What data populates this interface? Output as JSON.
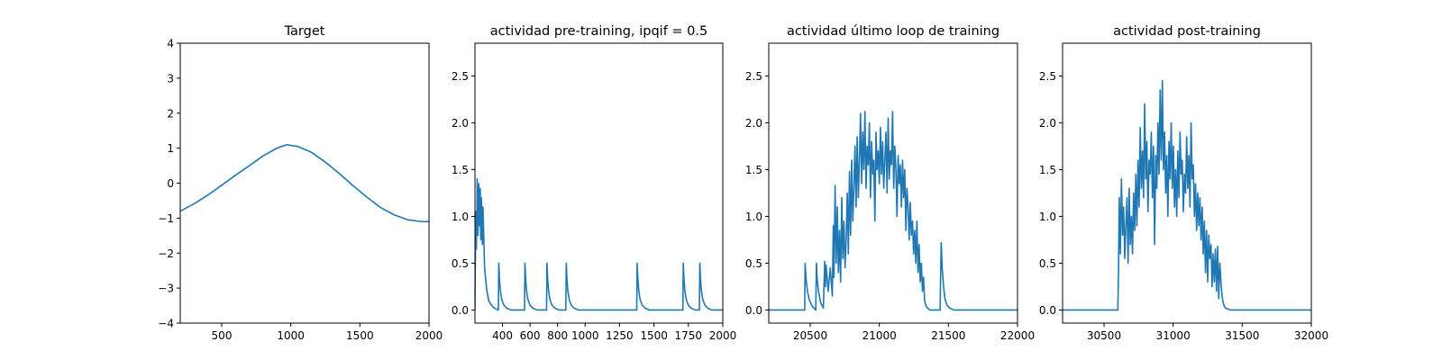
{
  "chart_data": [
    {
      "type": "line",
      "title": "Target",
      "xlabel": "",
      "ylabel": "",
      "xlim": [
        200,
        2000
      ],
      "ylim": [
        -4,
        4
      ],
      "xticks": [
        500,
        1000,
        1500,
        2000
      ],
      "yticks": [
        -4,
        -3,
        -2,
        -1,
        0,
        1,
        2,
        3,
        4
      ],
      "series": [
        {
          "color": "#1f77b4",
          "x": [
            200,
            300,
            400,
            500,
            600,
            700,
            800,
            900,
            970,
            1050,
            1150,
            1250,
            1350,
            1450,
            1550,
            1650,
            1750,
            1850,
            1950,
            2000
          ],
          "y": [
            -0.8,
            -0.59,
            -0.34,
            -0.06,
            0.23,
            0.5,
            0.78,
            1.0,
            1.1,
            1.05,
            0.88,
            0.6,
            0.28,
            -0.07,
            -0.4,
            -0.7,
            -0.91,
            -1.05,
            -1.1,
            -1.1
          ]
        }
      ]
    },
    {
      "type": "line",
      "title": "actividad pre-training, ipqif = 0.5",
      "xlabel": "",
      "ylabel": "",
      "xlim": [
        200,
        2000
      ],
      "ylim": [
        -0.14,
        2.85
      ],
      "xticks": [
        400,
        600,
        800,
        1000,
        1250,
        1500,
        1750,
        2000
      ],
      "yticks": [
        0.0,
        0.5,
        1.0,
        1.5,
        2.0,
        2.5
      ],
      "series": [
        {
          "color": "#1f77b4",
          "x": [
            200,
            202,
            206,
            210,
            214,
            216,
            222,
            226,
            228,
            234,
            238,
            242,
            246,
            250,
            254,
            258,
            262,
            270,
            285,
            300,
            320,
            340,
            370,
            373,
            378,
            385,
            395,
            410,
            430,
            460,
            500,
            560,
            563,
            568,
            575,
            585,
            600,
            620,
            650,
            690,
            720,
            723,
            728,
            735,
            745,
            760,
            780,
            810,
            840,
            860,
            863,
            868,
            875,
            885,
            900,
            920,
            950,
            1000,
            1100,
            1200,
            1300,
            1375,
            1378,
            1383,
            1390,
            1400,
            1415,
            1435,
            1465,
            1500,
            1600,
            1700,
            1710,
            1713,
            1718,
            1725,
            1735,
            1750,
            1770,
            1800,
            1830,
            1833,
            1838,
            1845,
            1855,
            1870,
            1890,
            1920,
            1960,
            2000
          ],
          "y": [
            0.0,
            0.4,
            1.05,
            0.65,
            0.95,
            1.4,
            0.8,
            1.15,
            1.35,
            0.9,
            1.3,
            0.75,
            1.2,
            1.05,
            0.7,
            1.1,
            0.9,
            0.45,
            0.22,
            0.1,
            0.05,
            0.02,
            0.0,
            0.5,
            0.33,
            0.2,
            0.11,
            0.05,
            0.02,
            0.0,
            0.0,
            0.0,
            0.5,
            0.33,
            0.2,
            0.11,
            0.05,
            0.02,
            0.0,
            0.0,
            0.0,
            0.5,
            0.33,
            0.2,
            0.11,
            0.05,
            0.02,
            0.0,
            0.0,
            0.0,
            0.5,
            0.33,
            0.2,
            0.11,
            0.05,
            0.02,
            0.0,
            0.0,
            0.0,
            0.0,
            0.0,
            0.0,
            0.5,
            0.33,
            0.2,
            0.11,
            0.05,
            0.02,
            0.0,
            0.0,
            0.0,
            0.0,
            0.0,
            0.5,
            0.33,
            0.2,
            0.11,
            0.05,
            0.02,
            0.0,
            0.0,
            0.5,
            0.33,
            0.2,
            0.11,
            0.05,
            0.02,
            0.0,
            0.0,
            0.0
          ]
        }
      ]
    },
    {
      "type": "line",
      "title": "actividad último loop de training",
      "xlabel": "",
      "ylabel": "",
      "xlim": [
        20200,
        22000
      ],
      "ylim": [
        -0.14,
        2.85
      ],
      "xticks": [
        20500,
        21000,
        21500,
        22000
      ],
      "yticks": [
        0.0,
        0.5,
        1.0,
        1.5,
        2.0,
        2.5
      ],
      "series": [
        {
          "color": "#1f77b4",
          "x": [
            20200,
            20300,
            20450,
            20460,
            20463,
            20470,
            20480,
            20495,
            20515,
            20540,
            20545,
            20550,
            20560,
            20575,
            20595,
            20605,
            20610,
            20615,
            20630,
            20645,
            20660,
            20667,
            20672,
            20680,
            20688,
            20696,
            20704,
            20712,
            20720,
            20728,
            20736,
            20744,
            20752,
            20760,
            20768,
            20776,
            20784,
            20792,
            20800,
            20808,
            20816,
            20824,
            20832,
            20840,
            20848,
            20856,
            20864,
            20872,
            20880,
            20888,
            20896,
            20904,
            20912,
            20920,
            20928,
            20936,
            20944,
            20952,
            20960,
            20968,
            20976,
            20984,
            20992,
            21000,
            21008,
            21016,
            21024,
            21032,
            21040,
            21048,
            21056,
            21064,
            21072,
            21080,
            21088,
            21096,
            21104,
            21112,
            21120,
            21128,
            21136,
            21144,
            21152,
            21160,
            21168,
            21176,
            21184,
            21192,
            21200,
            21208,
            21216,
            21224,
            21232,
            21240,
            21248,
            21256,
            21264,
            21272,
            21280,
            21288,
            21296,
            21304,
            21312,
            21320,
            21328,
            21336,
            21350,
            21365,
            21380,
            21395,
            21410,
            21425,
            21440,
            21443,
            21448,
            21455,
            21465,
            21475,
            21490,
            21510,
            21540,
            21600,
            21700,
            21800,
            21900,
            22000
          ],
          "y": [
            0.0,
            0.0,
            0.0,
            0.0,
            0.5,
            0.33,
            0.2,
            0.1,
            0.04,
            0.0,
            0.5,
            0.33,
            0.2,
            0.08,
            0.02,
            0.52,
            0.25,
            0.48,
            0.2,
            0.45,
            0.15,
            0.9,
            0.35,
            1.33,
            0.5,
            1.1,
            0.4,
            0.85,
            0.3,
            1.2,
            0.55,
            0.95,
            0.45,
            0.75,
            1.25,
            0.6,
            1.48,
            0.8,
            1.6,
            0.95,
            1.3,
            1.75,
            1.1,
            1.85,
            1.2,
            1.6,
            2.1,
            1.35,
            1.9,
            1.5,
            2.12,
            1.3,
            1.75,
            1.55,
            2.0,
            1.2,
            1.8,
            1.45,
            1.6,
            0.95,
            1.9,
            1.5,
            1.7,
            1.35,
            1.95,
            1.45,
            1.8,
            1.3,
            1.6,
            1.9,
            1.25,
            2.05,
            1.4,
            1.7,
            1.55,
            2.12,
            1.3,
            1.75,
            1.5,
            1.0,
            1.65,
            1.35,
            1.55,
            1.1,
            1.6,
            1.2,
            1.5,
            0.85,
            1.3,
            1.1,
            0.75,
            1.15,
            0.8,
            0.95,
            0.6,
            0.85,
            0.5,
            0.95,
            0.4,
            0.7,
            0.3,
            0.5,
            0.2,
            0.35,
            0.1,
            0.05,
            0.02,
            0.0,
            0.0,
            0.0,
            0.0,
            0.0,
            0.0,
            0.3,
            0.72,
            0.45,
            0.25,
            0.12,
            0.05,
            0.02,
            0.0,
            0.0,
            0.0,
            0.0,
            0.0,
            0.0
          ]
        }
      ]
    },
    {
      "type": "line",
      "title": "actividad post-training",
      "xlabel": "",
      "ylabel": "",
      "xlim": [
        30200,
        32000
      ],
      "ylim": [
        -0.14,
        2.85
      ],
      "xticks": [
        30500,
        31000,
        31500,
        32000
      ],
      "yticks": [
        0.0,
        0.5,
        1.0,
        1.5,
        2.0,
        2.5
      ],
      "series": [
        {
          "color": "#1f77b4",
          "x": [
            30200,
            30400,
            30600,
            30605,
            30610,
            30618,
            30626,
            30634,
            30642,
            30650,
            30658,
            30666,
            30674,
            30682,
            30690,
            30698,
            30706,
            30714,
            30722,
            30730,
            30738,
            30746,
            30754,
            30762,
            30770,
            30778,
            30786,
            30794,
            30802,
            30810,
            30818,
            30826,
            30834,
            30842,
            30850,
            30858,
            30866,
            30874,
            30882,
            30890,
            30898,
            30906,
            30914,
            30922,
            30930,
            30938,
            30946,
            30954,
            30962,
            30970,
            30978,
            30986,
            30994,
            31002,
            31010,
            31018,
            31026,
            31034,
            31042,
            31050,
            31058,
            31066,
            31074,
            31082,
            31090,
            31098,
            31106,
            31114,
            31122,
            31130,
            31138,
            31146,
            31154,
            31162,
            31170,
            31178,
            31186,
            31194,
            31202,
            31210,
            31218,
            31226,
            31234,
            31242,
            31250,
            31258,
            31266,
            31274,
            31282,
            31290,
            31298,
            31306,
            31314,
            31322,
            31330,
            31338,
            31346,
            31354,
            31362,
            31370,
            31380,
            31395,
            31415,
            31440,
            31480,
            31550,
            31700,
            31850,
            32000
          ],
          "y": [
            0.0,
            0.0,
            0.0,
            0.45,
            1.2,
            0.6,
            1.4,
            0.8,
            1.1,
            0.55,
            0.9,
            1.2,
            0.5,
            1.3,
            0.7,
            1.0,
            0.6,
            1.25,
            0.85,
            1.45,
            0.9,
            1.6,
            1.1,
            1.95,
            1.3,
            1.7,
            1.2,
            2.2,
            1.4,
            1.8,
            1.05,
            1.6,
            1.45,
            1.9,
            1.2,
            1.75,
            0.7,
            1.65,
            1.3,
            2.0,
            1.45,
            2.35,
            1.6,
            2.45,
            1.5,
            1.9,
            1.25,
            1.65,
            1.0,
            1.8,
            1.4,
            2.0,
            1.3,
            1.75,
            1.1,
            1.5,
            1.0,
            1.7,
            1.2,
            1.9,
            1.45,
            1.6,
            1.05,
            1.45,
            1.25,
            1.85,
            1.3,
            1.65,
            1.1,
            2.0,
            1.4,
            1.55,
            1.0,
            1.35,
            0.85,
            1.25,
            0.9,
            1.2,
            0.75,
            1.1,
            0.6,
            0.95,
            0.4,
            0.85,
            0.3,
            0.8,
            0.55,
            0.7,
            0.25,
            0.6,
            0.3,
            0.65,
            0.2,
            0.68,
            0.12,
            0.5,
            0.3,
            0.15,
            0.08,
            0.04,
            0.02,
            0.01,
            0.0,
            0.0,
            0.0,
            0.0,
            0.0,
            0.0,
            0.0
          ]
        }
      ]
    }
  ]
}
